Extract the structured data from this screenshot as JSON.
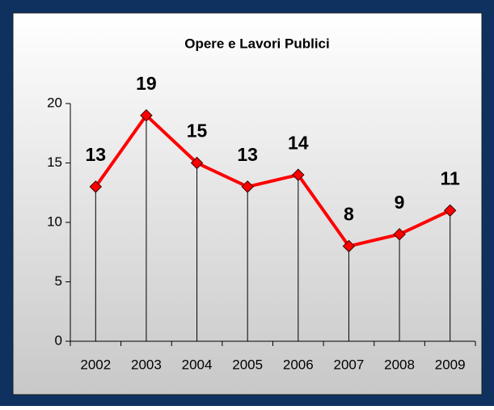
{
  "chart_data": {
    "type": "line",
    "title": "Opere e Lavori Publici",
    "categories": [
      "2002",
      "2003",
      "2004",
      "2005",
      "2006",
      "2007",
      "2008",
      "2009"
    ],
    "values": [
      13,
      19,
      15,
      13,
      14,
      8,
      9,
      11
    ],
    "color": "#ff0000",
    "ylim": [
      0,
      20
    ],
    "yticks": [
      0,
      5,
      10,
      15,
      20
    ]
  }
}
